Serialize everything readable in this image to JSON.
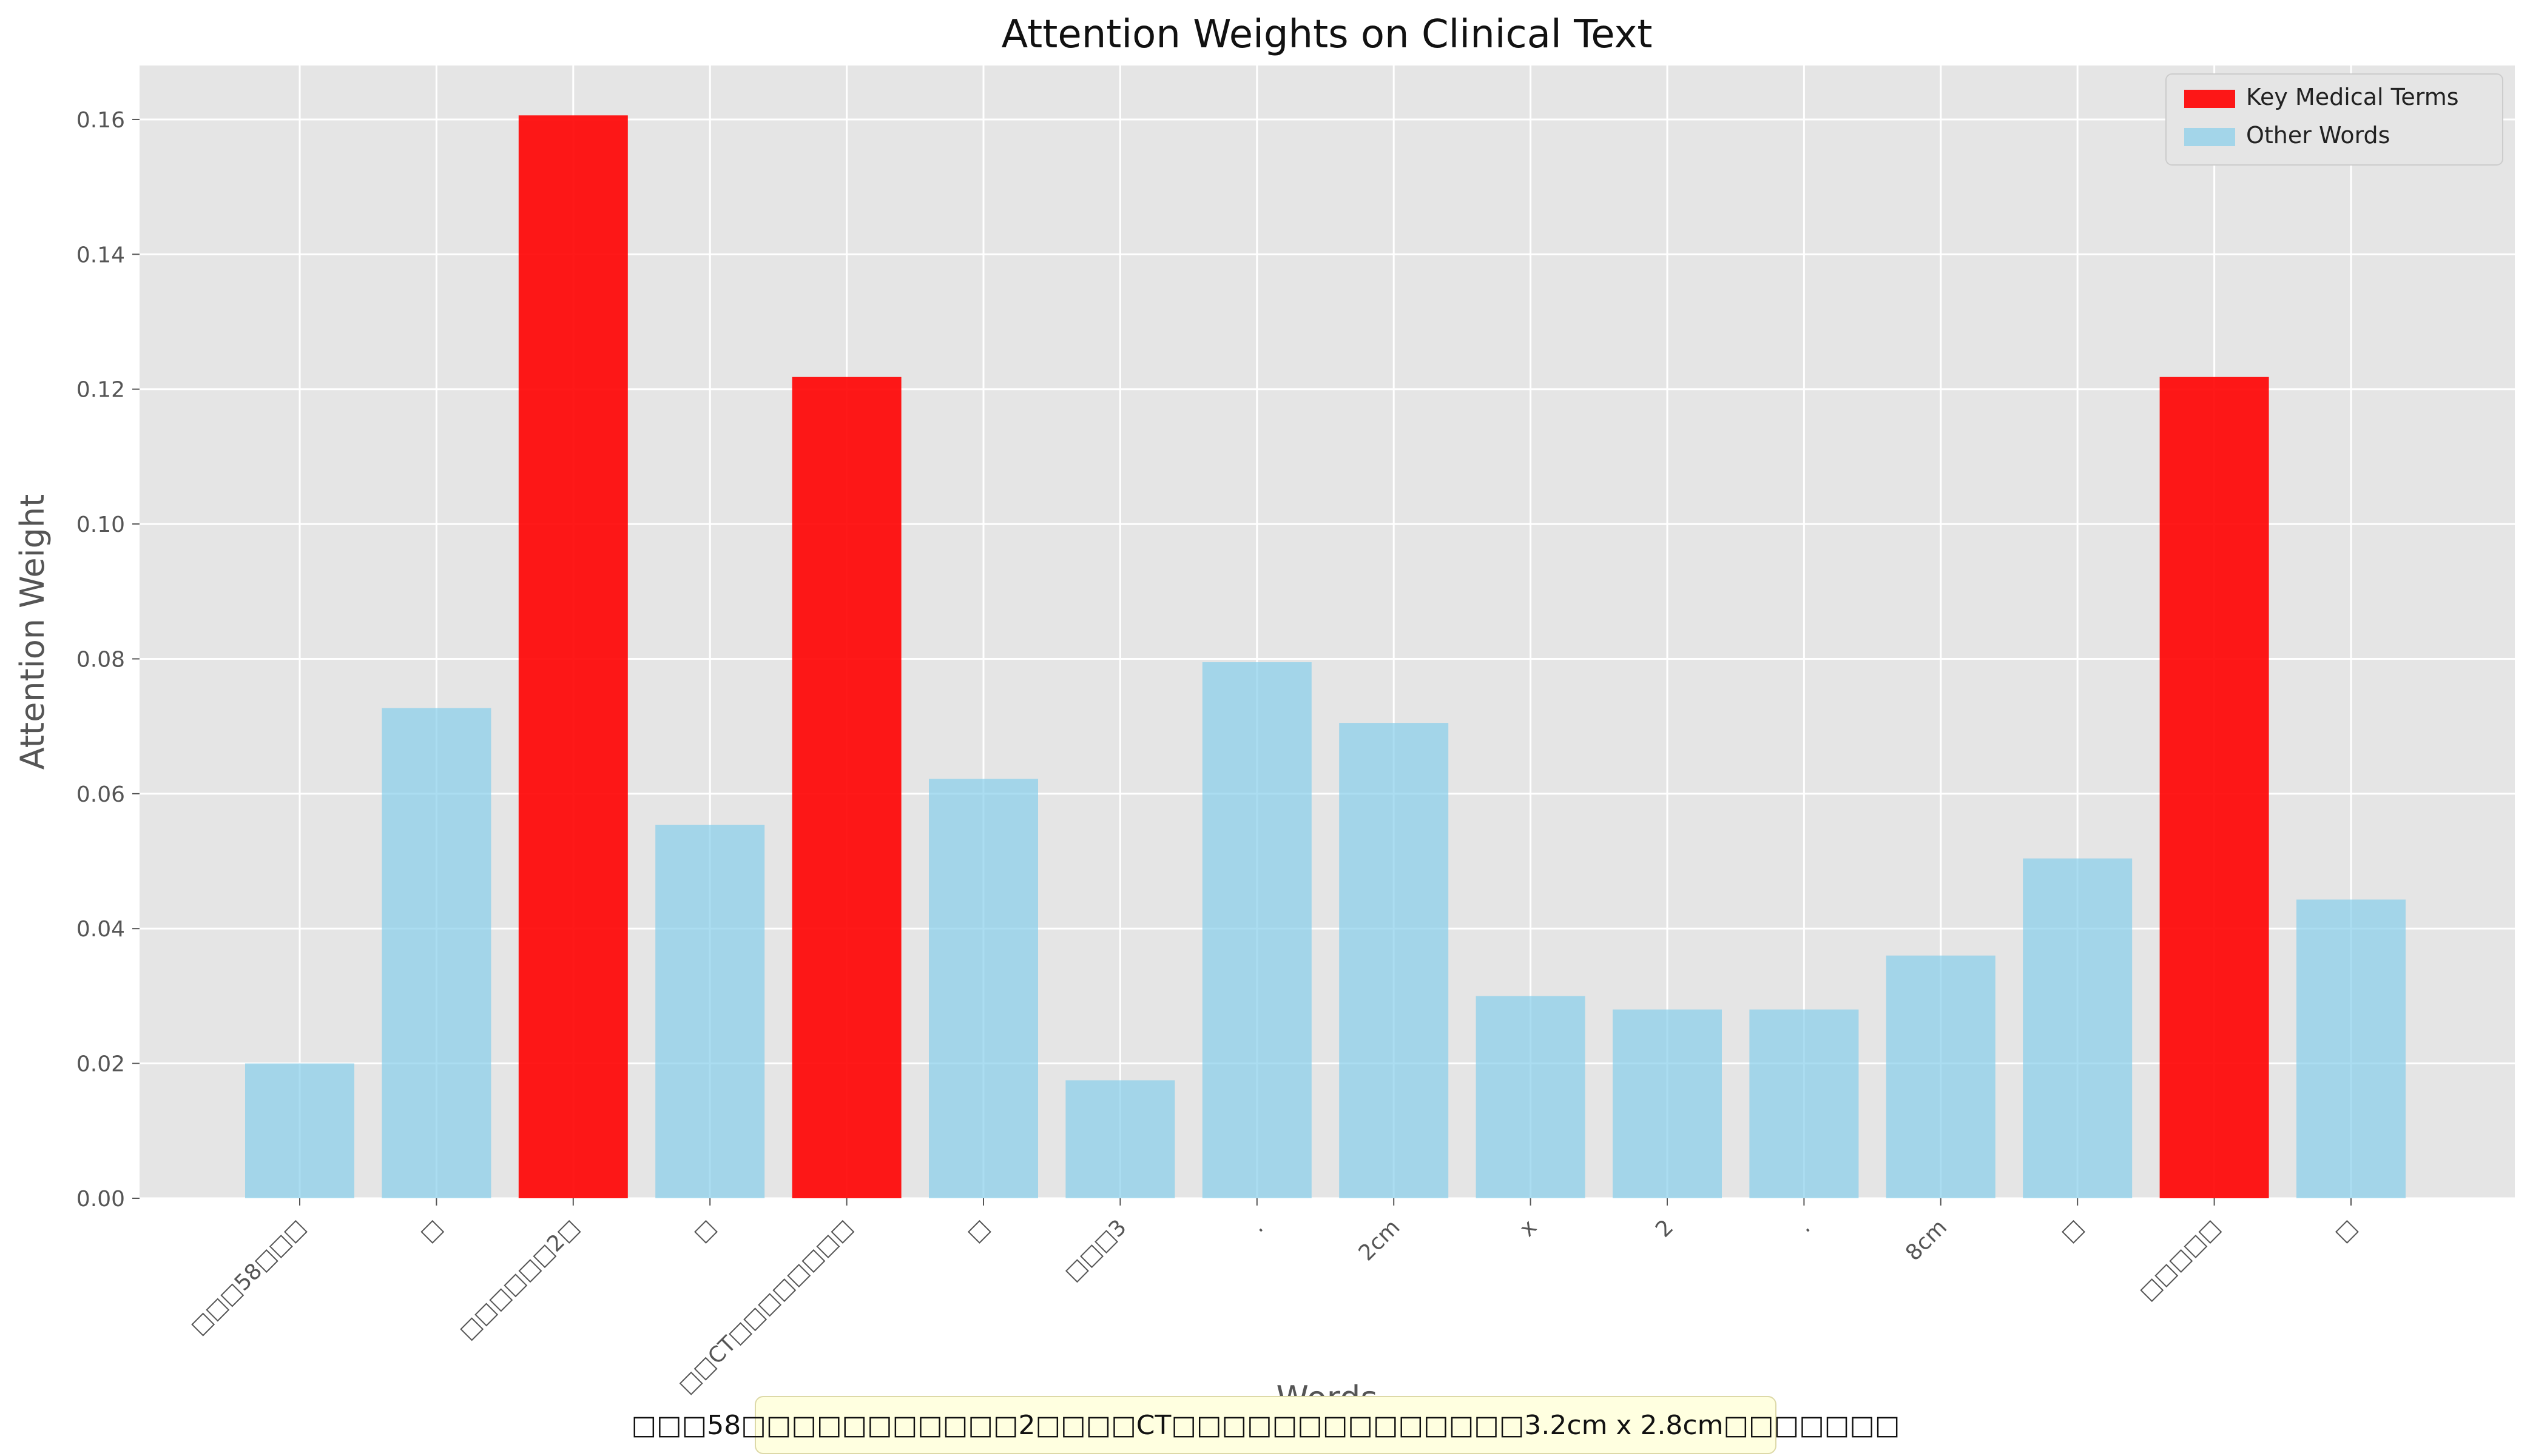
{
  "chart_data": {
    "type": "bar",
    "title": "Attention Weights on Clinical Text",
    "xlabel": "Words",
    "ylabel": "Attention Weight",
    "ylim": [
      0,
      0.168
    ],
    "yticks": [
      "0.00",
      "0.02",
      "0.04",
      "0.06",
      "0.08",
      "0.10",
      "0.12",
      "0.14",
      "0.16"
    ],
    "grid": true,
    "legend_position": "top-right",
    "categories": [
      "□□□58□□□",
      "□",
      "□□□□□□2□",
      "□",
      "□□CT□□□□□□□□",
      "□",
      "□□□3",
      ".",
      "2cm",
      "x",
      "2",
      ".",
      "8cm",
      "□",
      "□□□□□",
      "□"
    ],
    "values": [
      0.02,
      0.0727,
      0.1606,
      0.0554,
      0.1218,
      0.0622,
      0.0175,
      0.0795,
      0.0705,
      0.03,
      0.028,
      0.028,
      0.036,
      0.0504,
      0.1218,
      0.0443
    ],
    "is_key_term": [
      false,
      false,
      true,
      false,
      true,
      false,
      false,
      false,
      false,
      false,
      false,
      false,
      false,
      false,
      true,
      false
    ],
    "series": [
      {
        "name": "Key Medical Terms",
        "color": "#ff0000"
      },
      {
        "name": "Other Words",
        "color": "#87ceeb"
      }
    ],
    "annotation": "□□□58□□□□□□□□□□□2□□□□CT□□□□□□□□□□□□□□3.2cm x 2.8cm□□□□□□□"
  }
}
